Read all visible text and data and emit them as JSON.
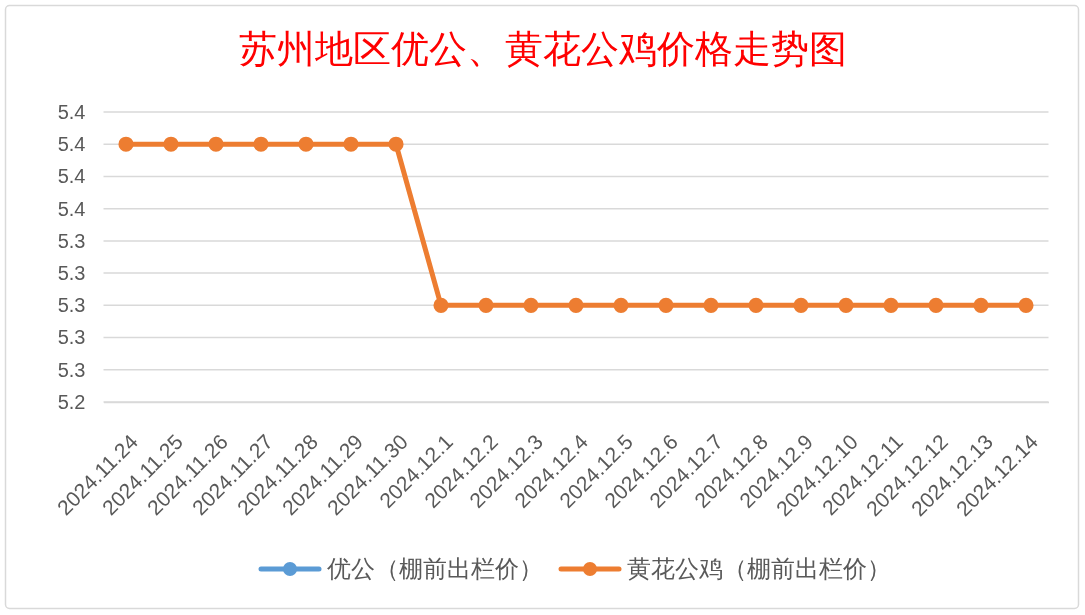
{
  "chart_data": {
    "type": "line",
    "title": "苏州地区优公、黄花公鸡价格走势图",
    "categories": [
      "2024.11.24",
      "2024.11.25",
      "2024.11.26",
      "2024.11.27",
      "2024.11.28",
      "2024.11.29",
      "2024.11.30",
      "2024.12.1",
      "2024.12.2",
      "2024.12.3",
      "2024.12.4",
      "2024.12.5",
      "2024.12.6",
      "2024.12.7",
      "2024.12.8",
      "2024.12.9",
      "2024.12.10",
      "2024.12.11",
      "2024.12.12",
      "2024.12.13",
      "2024.12.14"
    ],
    "series": [
      {
        "name": "优公（棚前出栏价）",
        "color": "#5b9bd5",
        "values": [
          null,
          null,
          null,
          null,
          null,
          null,
          null,
          null,
          null,
          null,
          null,
          null,
          null,
          null,
          null,
          null,
          null,
          null,
          null,
          null,
          null
        ]
      },
      {
        "name": "黄花公鸡（棚前出栏价）",
        "color": "#ed7d31",
        "values": [
          5.4,
          5.4,
          5.4,
          5.4,
          5.4,
          5.4,
          5.4,
          5.3,
          5.3,
          5.3,
          5.3,
          5.3,
          5.3,
          5.3,
          5.3,
          5.3,
          5.3,
          5.3,
          5.3,
          5.3,
          5.3
        ]
      }
    ],
    "ylim": [
      5.24,
      5.42
    ],
    "yticks": [
      {
        "value": 5.24,
        "label": "5.2"
      },
      {
        "value": 5.26,
        "label": "5.3"
      },
      {
        "value": 5.28,
        "label": "5.3"
      },
      {
        "value": 5.3,
        "label": "5.3"
      },
      {
        "value": 5.32,
        "label": "5.3"
      },
      {
        "value": 5.34,
        "label": "5.3"
      },
      {
        "value": 5.36,
        "label": "5.4"
      },
      {
        "value": 5.38,
        "label": "5.4"
      },
      {
        "value": 5.4,
        "label": "5.4"
      },
      {
        "value": 5.42,
        "label": "5.4"
      }
    ],
    "grid": "y",
    "legend": "bottom",
    "marker": "circle",
    "line_style": "solid"
  }
}
